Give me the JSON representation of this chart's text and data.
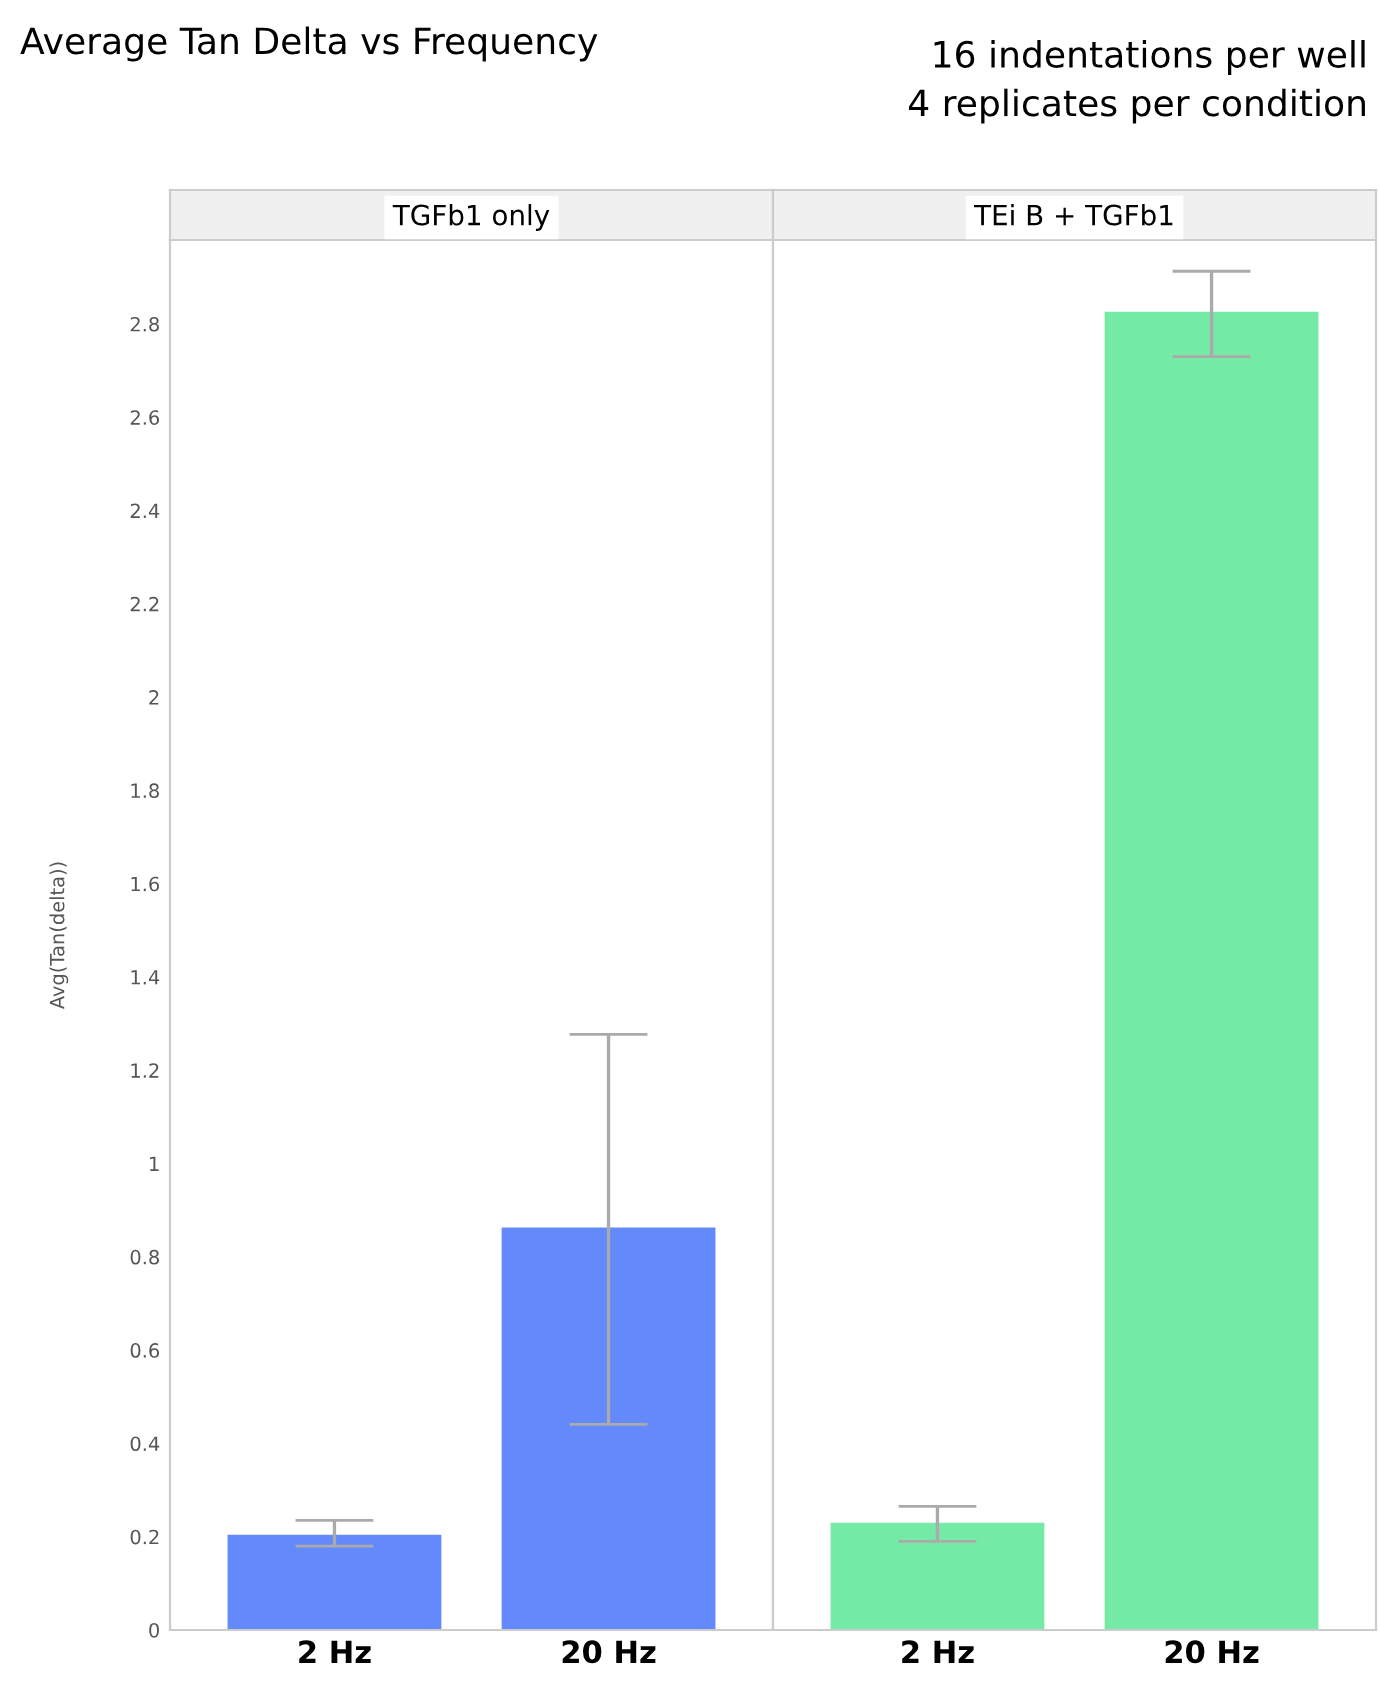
{
  "chart_data": [
    {
      "type": "bar",
      "title": "TGFb1 only",
      "ylabel": "Avg(Tan(delta))",
      "categories": [
        "2 Hz",
        "20 Hz"
      ],
      "values": [
        0.204,
        0.863
      ],
      "errors": [
        [
          0.18,
          0.235
        ],
        [
          0.441,
          1.277
        ]
      ],
      "color": "#6389fb",
      "ylim": [
        0,
        2.98
      ],
      "yticks": [
        0,
        0.2,
        0.4,
        0.6,
        0.8,
        1,
        1.2,
        1.4,
        1.6,
        1.8,
        2,
        2.2,
        2.4,
        2.6,
        2.8
      ],
      "grid": false,
      "annotations": [
        "Average Tan Delta vs Frequency",
        "16 indentations per well\n4 replicates per condition"
      ]
    },
    {
      "type": "bar",
      "title": "TEi B + TGFb1",
      "categories": [
        "2 Hz",
        "20 Hz"
      ],
      "values": [
        0.23,
        2.826
      ],
      "errors": [
        [
          0.19,
          0.265
        ],
        [
          2.73,
          2.913
        ]
      ],
      "color": "#74eaa6",
      "ylim": [
        0,
        2.98
      ],
      "yticks": [
        0,
        0.2,
        0.4,
        0.6,
        0.8,
        1,
        1.2,
        1.4,
        1.6,
        1.8,
        2,
        2.2,
        2.4,
        2.6,
        2.8
      ],
      "grid": false,
      "tick_labels": "x"
    }
  ]
}
